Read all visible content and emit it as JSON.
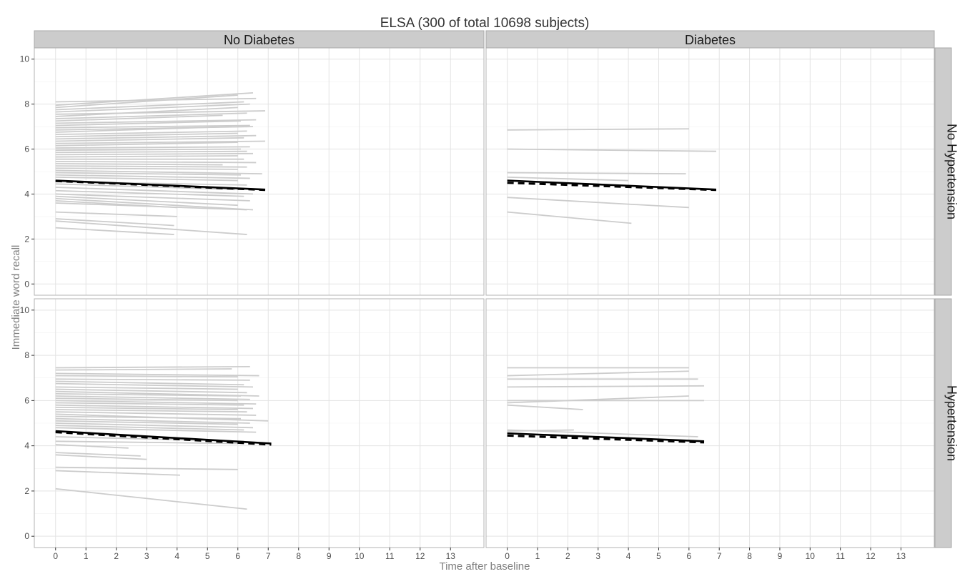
{
  "chart_data": {
    "type": "line",
    "title": "ELSA (300 of total 10698 subjects)",
    "xlabel": "Time after baseline",
    "ylabel": "Immediate word recall",
    "facet_columns": [
      "No Diabetes",
      "Diabetes"
    ],
    "facet_rows": [
      "No Hypertension",
      "Hypertension"
    ],
    "xlim": [
      -0.7,
      14.1
    ],
    "ylim": [
      -0.5,
      10.5
    ],
    "x_ticks": [
      0,
      1,
      2,
      3,
      4,
      5,
      6,
      7,
      8,
      9,
      10,
      11,
      12,
      13
    ],
    "y_ticks": [
      0,
      2,
      4,
      6,
      8,
      10
    ],
    "grid": true,
    "individual_line_color": "#cccccc",
    "mean_line_color": "#000000",
    "panels": [
      {
        "column": "No Diabetes",
        "row": "No Hypertension",
        "mean_solid": [
          [
            0,
            4.6
          ],
          [
            6.9,
            4.2
          ]
        ],
        "mean_dashed": [
          [
            0,
            4.58
          ],
          [
            6.9,
            4.18
          ]
        ],
        "individuals": [
          [
            0,
            8.1,
            6.6,
            8.25
          ],
          [
            0,
            7.95,
            6.5,
            8.5
          ],
          [
            0,
            7.85,
            6.0,
            8.4
          ],
          [
            0,
            7.75,
            6.2,
            8.1
          ],
          [
            0,
            7.65,
            6.4,
            8.0
          ],
          [
            0,
            7.55,
            6.9,
            7.7
          ],
          [
            0,
            7.45,
            6.0,
            7.85
          ],
          [
            0,
            7.35,
            6.3,
            7.6
          ],
          [
            0,
            7.25,
            5.5,
            7.5
          ],
          [
            0,
            7.15,
            6.6,
            7.3
          ],
          [
            0,
            7.05,
            6.1,
            7.25
          ],
          [
            0,
            6.95,
            6.4,
            7.05
          ],
          [
            0,
            6.85,
            6.5,
            7.0
          ],
          [
            0,
            6.75,
            5.8,
            7.0
          ],
          [
            0,
            6.65,
            6.3,
            6.8
          ],
          [
            0,
            6.55,
            6.0,
            6.7
          ],
          [
            0,
            6.45,
            6.6,
            6.6
          ],
          [
            0,
            6.35,
            6.2,
            6.5
          ],
          [
            0,
            6.25,
            6.9,
            6.35
          ],
          [
            0,
            6.15,
            6.0,
            6.3
          ],
          [
            0,
            6.05,
            6.4,
            6.1
          ],
          [
            0,
            5.95,
            6.1,
            6.0
          ],
          [
            0,
            5.85,
            6.3,
            5.9
          ],
          [
            0,
            5.75,
            6.5,
            5.8
          ],
          [
            0,
            5.65,
            6.0,
            5.7
          ],
          [
            0,
            5.55,
            6.2,
            5.55
          ],
          [
            0,
            5.45,
            6.6,
            5.4
          ],
          [
            0,
            5.35,
            5.5,
            5.3
          ],
          [
            0,
            5.25,
            6.3,
            5.2
          ],
          [
            0,
            5.15,
            6.0,
            5.1
          ],
          [
            0,
            5.05,
            6.8,
            4.9
          ],
          [
            0,
            4.95,
            6.1,
            4.85
          ],
          [
            0,
            4.85,
            6.4,
            4.7
          ],
          [
            0,
            4.75,
            6.0,
            4.6
          ],
          [
            0,
            4.55,
            6.3,
            4.4
          ],
          [
            0,
            4.45,
            5.9,
            4.2
          ],
          [
            0,
            4.3,
            6.5,
            4.0
          ],
          [
            0,
            4.15,
            6.2,
            3.9
          ],
          [
            0,
            4.0,
            6.4,
            3.7
          ],
          [
            0,
            3.9,
            6.0,
            3.5
          ],
          [
            0,
            3.8,
            6.5,
            3.3
          ],
          [
            0,
            3.7,
            4.0,
            3.4
          ],
          [
            0,
            3.6,
            6.3,
            3.3
          ],
          [
            0,
            2.9,
            3.9,
            2.6
          ],
          [
            0,
            2.8,
            6.3,
            2.2
          ],
          [
            0,
            2.5,
            3.9,
            2.2
          ],
          [
            0,
            3.2,
            4.0,
            3.0
          ]
        ]
      },
      {
        "column": "Diabetes",
        "row": "No Hypertension",
        "mean_solid": [
          [
            0,
            4.6
          ],
          [
            6.9,
            4.2
          ]
        ],
        "mean_dashed": [
          [
            0,
            4.5
          ],
          [
            6.9,
            4.18
          ]
        ],
        "individuals": [
          [
            0,
            6.85,
            6.0,
            6.9
          ],
          [
            0,
            6.0,
            6.9,
            5.9
          ],
          [
            0,
            4.95,
            5.9,
            4.9
          ],
          [
            0,
            4.75,
            4.0,
            4.6
          ],
          [
            0,
            3.85,
            6.0,
            3.4
          ],
          [
            0,
            3.2,
            4.1,
            2.7
          ]
        ]
      },
      {
        "column": "No Diabetes",
        "row": "Hypertension",
        "mean_solid": [
          [
            0,
            4.65
          ],
          [
            7.1,
            4.1
          ]
        ],
        "mean_dashed": [
          [
            0,
            4.6
          ],
          [
            7.1,
            4.05
          ]
        ],
        "individuals": [
          [
            0,
            7.45,
            6.4,
            7.5
          ],
          [
            0,
            7.35,
            5.8,
            7.4
          ],
          [
            0,
            7.2,
            6.7,
            7.1
          ],
          [
            0,
            7.1,
            6.0,
            7.05
          ],
          [
            0,
            6.95,
            6.4,
            6.9
          ],
          [
            0,
            6.85,
            6.2,
            6.7
          ],
          [
            0,
            6.75,
            6.5,
            6.6
          ],
          [
            0,
            6.6,
            6.0,
            6.5
          ],
          [
            0,
            6.5,
            6.3,
            6.35
          ],
          [
            0,
            6.4,
            6.7,
            6.2
          ],
          [
            0,
            6.3,
            6.1,
            6.2
          ],
          [
            0,
            6.2,
            6.4,
            6.05
          ],
          [
            0,
            6.1,
            6.0,
            6.0
          ],
          [
            0,
            6.0,
            6.6,
            5.85
          ],
          [
            0,
            5.9,
            6.2,
            5.8
          ],
          [
            0,
            5.8,
            6.5,
            5.65
          ],
          [
            0,
            5.7,
            6.0,
            5.6
          ],
          [
            0,
            5.6,
            6.3,
            5.5
          ],
          [
            0,
            5.5,
            6.6,
            5.35
          ],
          [
            0,
            5.4,
            7.0,
            5.1
          ],
          [
            0,
            5.3,
            6.1,
            5.2
          ],
          [
            0,
            5.2,
            6.4,
            5.0
          ],
          [
            0,
            5.1,
            6.0,
            4.95
          ],
          [
            0,
            5.0,
            6.5,
            4.8
          ],
          [
            0,
            4.9,
            6.2,
            4.7
          ],
          [
            0,
            4.8,
            6.6,
            4.6
          ],
          [
            0,
            4.4,
            6.2,
            4.2
          ],
          [
            0,
            4.2,
            6.0,
            4.1
          ],
          [
            0,
            4.05,
            2.4,
            3.9
          ],
          [
            0,
            3.7,
            2.8,
            3.55
          ],
          [
            0,
            3.6,
            3.0,
            3.4
          ],
          [
            0,
            3.05,
            6.0,
            2.95
          ],
          [
            0,
            2.9,
            4.1,
            2.7
          ],
          [
            0,
            2.1,
            6.3,
            1.2
          ]
        ]
      },
      {
        "column": "Diabetes",
        "row": "Hypertension",
        "mean_solid": [
          [
            0,
            4.55
          ],
          [
            6.5,
            4.2
          ]
        ],
        "mean_dashed": [
          [
            0,
            4.45
          ],
          [
            6.5,
            4.15
          ]
        ],
        "individuals": [
          [
            0,
            7.45,
            6.0,
            7.45
          ],
          [
            0,
            7.1,
            6.0,
            7.3
          ],
          [
            0,
            6.95,
            6.3,
            6.95
          ],
          [
            0,
            6.6,
            6.5,
            6.65
          ],
          [
            0,
            6.0,
            6.5,
            6.0
          ],
          [
            0,
            5.9,
            6.0,
            6.2
          ],
          [
            0,
            5.8,
            2.5,
            5.6
          ],
          [
            0,
            4.65,
            2.2,
            4.7
          ],
          [
            0,
            4.7,
            6.3,
            4.4
          ]
        ]
      }
    ]
  }
}
